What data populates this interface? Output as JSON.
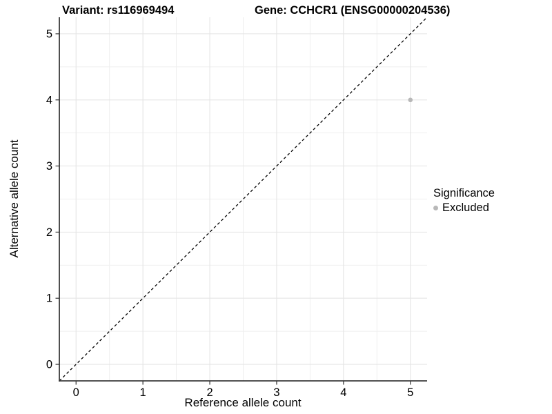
{
  "header": {
    "title_variant": "Variant: rs116969494",
    "title_gene": "Gene: CCHCR1 (ENSG00000204536)"
  },
  "chart_data": {
    "type": "scatter",
    "title_left": "Variant: rs116969494",
    "title_right": "Gene: CCHCR1 (ENSG00000204536)",
    "xlabel": "Reference allele count",
    "ylabel": "Alternative allele count",
    "xlim": [
      -0.25,
      5.25
    ],
    "ylim": [
      -0.25,
      5.25
    ],
    "xticks": [
      0,
      1,
      2,
      3,
      4,
      5
    ],
    "yticks": [
      0,
      1,
      2,
      3,
      4,
      5
    ],
    "grid": "major and minor gridlines, minor at 0.5 steps",
    "minor_grid_step": 0.5,
    "reference_line": {
      "kind": "identity y = x",
      "linestyle": "dashed",
      "color": "#000000"
    },
    "series": [
      {
        "name": "Excluded",
        "color": "#b8b8b8",
        "marker": "circle",
        "points": [
          {
            "x": 5,
            "y": 4
          }
        ]
      }
    ],
    "legend": {
      "title": "Significance",
      "position": "right-center",
      "items": [
        {
          "label": "Excluded",
          "color": "#b8b8b8",
          "marker": "circle"
        }
      ]
    }
  },
  "style": {
    "background": "#ffffff",
    "axis_color": "#3a3a3a",
    "tick_color": "#333333",
    "grid_major": "#e5e5e5",
    "grid_minor": "#efefef",
    "text_color": "#000000"
  }
}
